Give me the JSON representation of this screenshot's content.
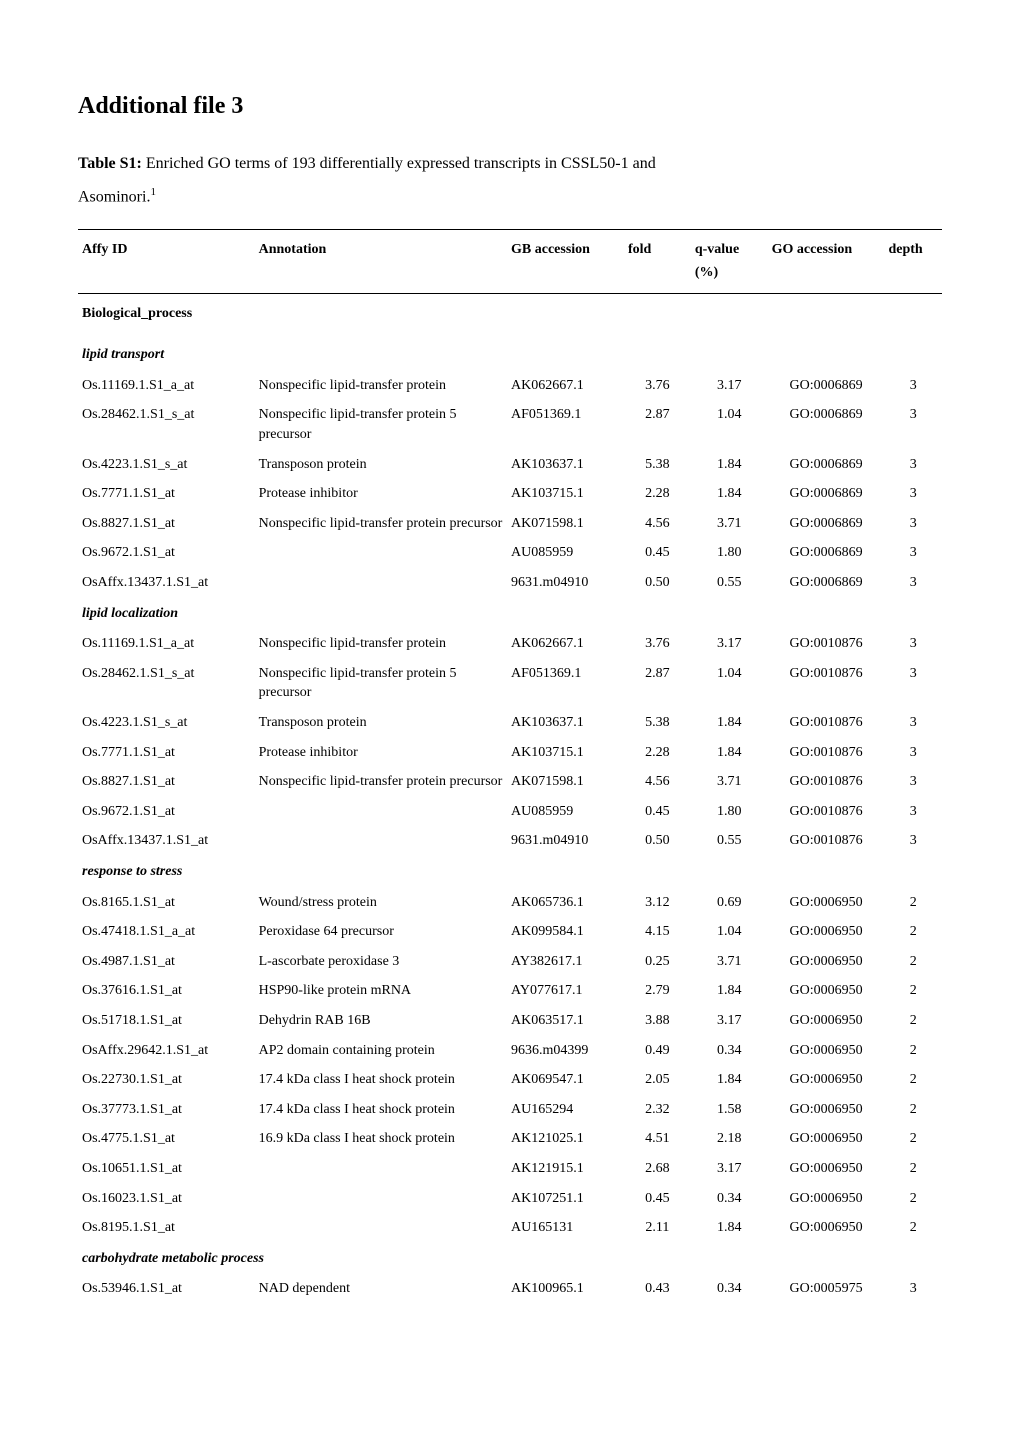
{
  "title": "Additional file 3",
  "caption_label": "Table S1:",
  "caption_text": " Enriched GO terms of 193 differentially expressed transcripts in CSSL50-1 and",
  "caption_line2": "Asominori.",
  "footnote_mark": "1",
  "columns": {
    "affy": "Affy ID",
    "annotation": "Annotation",
    "gb": "GB accession",
    "fold": "fold",
    "qvalue": "q-value",
    "qvalue_sub": "(%)",
    "go": "GO accession",
    "depth": "depth"
  },
  "section_header": "Biological_process",
  "groups": [
    {
      "name": "lipid transport",
      "rows": [
        {
          "affy": "Os.11169.1.S1_a_at",
          "anno": "Nonspecific lipid-transfer protein",
          "gb": "AK062667.1",
          "fold": "3.76",
          "q": "3.17",
          "go": "GO:0006869",
          "depth": "3"
        },
        {
          "affy": "Os.28462.1.S1_s_at",
          "anno": "Nonspecific lipid-transfer protein 5 precursor",
          "gb": "AF051369.1",
          "fold": "2.87",
          "q": "1.04",
          "go": "GO:0006869",
          "depth": "3"
        },
        {
          "affy": "Os.4223.1.S1_s_at",
          "anno": "Transposon protein",
          "gb": "AK103637.1",
          "fold": "5.38",
          "q": "1.84",
          "go": "GO:0006869",
          "depth": "3"
        },
        {
          "affy": "Os.7771.1.S1_at",
          "anno": "Protease inhibitor",
          "gb": "AK103715.1",
          "fold": "2.28",
          "q": "1.84",
          "go": "GO:0006869",
          "depth": "3"
        },
        {
          "affy": "Os.8827.1.S1_at",
          "anno": "Nonspecific lipid-transfer protein precursor",
          "gb": "AK071598.1",
          "fold": "4.56",
          "q": "3.71",
          "go": "GO:0006869",
          "depth": "3"
        },
        {
          "affy": "Os.9672.1.S1_at",
          "anno": "",
          "gb": "AU085959",
          "fold": "0.45",
          "q": "1.80",
          "go": "GO:0006869",
          "depth": "3"
        },
        {
          "affy": "OsAffx.13437.1.S1_at",
          "anno": "",
          "gb": "9631.m04910",
          "fold": "0.50",
          "q": "0.55",
          "go": "GO:0006869",
          "depth": "3"
        }
      ]
    },
    {
      "name": "lipid localization",
      "rows": [
        {
          "affy": "Os.11169.1.S1_a_at",
          "anno": "Nonspecific lipid-transfer protein",
          "gb": "AK062667.1",
          "fold": "3.76",
          "q": "3.17",
          "go": "GO:0010876",
          "depth": "3"
        },
        {
          "affy": "Os.28462.1.S1_s_at",
          "anno": "Nonspecific lipid-transfer protein 5 precursor",
          "gb": "AF051369.1",
          "fold": "2.87",
          "q": "1.04",
          "go": "GO:0010876",
          "depth": "3"
        },
        {
          "affy": "Os.4223.1.S1_s_at",
          "anno": "Transposon protein",
          "gb": "AK103637.1",
          "fold": "5.38",
          "q": "1.84",
          "go": "GO:0010876",
          "depth": "3"
        },
        {
          "affy": "Os.7771.1.S1_at",
          "anno": "Protease inhibitor",
          "gb": "AK103715.1",
          "fold": "2.28",
          "q": "1.84",
          "go": "GO:0010876",
          "depth": "3"
        },
        {
          "affy": "Os.8827.1.S1_at",
          "anno": "Nonspecific lipid-transfer protein precursor",
          "gb": "AK071598.1",
          "fold": "4.56",
          "q": "3.71",
          "go": "GO:0010876",
          "depth": "3"
        },
        {
          "affy": "Os.9672.1.S1_at",
          "anno": "",
          "gb": "AU085959",
          "fold": "0.45",
          "q": "1.80",
          "go": "GO:0010876",
          "depth": "3"
        },
        {
          "affy": "OsAffx.13437.1.S1_at",
          "anno": "",
          "gb": "9631.m04910",
          "fold": "0.50",
          "q": "0.55",
          "go": "GO:0010876",
          "depth": "3"
        }
      ]
    },
    {
      "name": "response to stress",
      "rows": [
        {
          "affy": "Os.8165.1.S1_at",
          "anno": "Wound/stress protein",
          "gb": "AK065736.1",
          "fold": "3.12",
          "q": "0.69",
          "go": "GO:0006950",
          "depth": "2"
        },
        {
          "affy": "Os.47418.1.S1_a_at",
          "anno": "Peroxidase 64 precursor",
          "gb": "AK099584.1",
          "fold": "4.15",
          "q": "1.04",
          "go": "GO:0006950",
          "depth": "2"
        },
        {
          "affy": "Os.4987.1.S1_at",
          "anno": "L-ascorbate peroxidase 3",
          "gb": "AY382617.1",
          "fold": "0.25",
          "q": "3.71",
          "go": "GO:0006950",
          "depth": "2"
        },
        {
          "affy": "Os.37616.1.S1_at",
          "anno": "HSP90-like protein mRNA",
          "gb": "AY077617.1",
          "fold": "2.79",
          "q": "1.84",
          "go": "GO:0006950",
          "depth": "2"
        },
        {
          "affy": "Os.51718.1.S1_at",
          "anno": "Dehydrin RAB 16B",
          "gb": "AK063517.1",
          "fold": "3.88",
          "q": "3.17",
          "go": "GO:0006950",
          "depth": "2"
        },
        {
          "affy": "OsAffx.29642.1.S1_at",
          "anno": "AP2 domain containing protein",
          "gb": "9636.m04399",
          "fold": "0.49",
          "q": "0.34",
          "go": "GO:0006950",
          "depth": "2"
        },
        {
          "affy": "Os.22730.1.S1_at",
          "anno": "17.4 kDa class I heat shock protein",
          "gb": "AK069547.1",
          "fold": "2.05",
          "q": "1.84",
          "go": "GO:0006950",
          "depth": "2"
        },
        {
          "affy": "Os.37773.1.S1_at",
          "anno": "17.4 kDa class I heat shock protein",
          "gb": "AU165294",
          "fold": "2.32",
          "q": "1.58",
          "go": "GO:0006950",
          "depth": "2"
        },
        {
          "affy": "Os.4775.1.S1_at",
          "anno": "16.9 kDa class I heat shock protein",
          "gb": "AK121025.1",
          "fold": "4.51",
          "q": "2.18",
          "go": "GO:0006950",
          "depth": "2"
        },
        {
          "affy": "Os.10651.1.S1_at",
          "anno": "",
          "gb": "AK121915.1",
          "fold": "2.68",
          "q": "3.17",
          "go": "GO:0006950",
          "depth": "2"
        },
        {
          "affy": "Os.16023.1.S1_at",
          "anno": "",
          "gb": "AK107251.1",
          "fold": "0.45",
          "q": "0.34",
          "go": "GO:0006950",
          "depth": "2"
        },
        {
          "affy": "Os.8195.1.S1_at",
          "anno": "",
          "gb": "AU165131",
          "fold": "2.11",
          "q": "1.84",
          "go": "GO:0006950",
          "depth": "2"
        }
      ]
    },
    {
      "name": "carbohydrate metabolic process",
      "rows": [
        {
          "affy": "Os.53946.1.S1_at",
          "anno": "NAD dependent",
          "gb": "AK100965.1",
          "fold": "0.43",
          "q": "0.34",
          "go": "GO:0005975",
          "depth": "3"
        }
      ]
    }
  ]
}
